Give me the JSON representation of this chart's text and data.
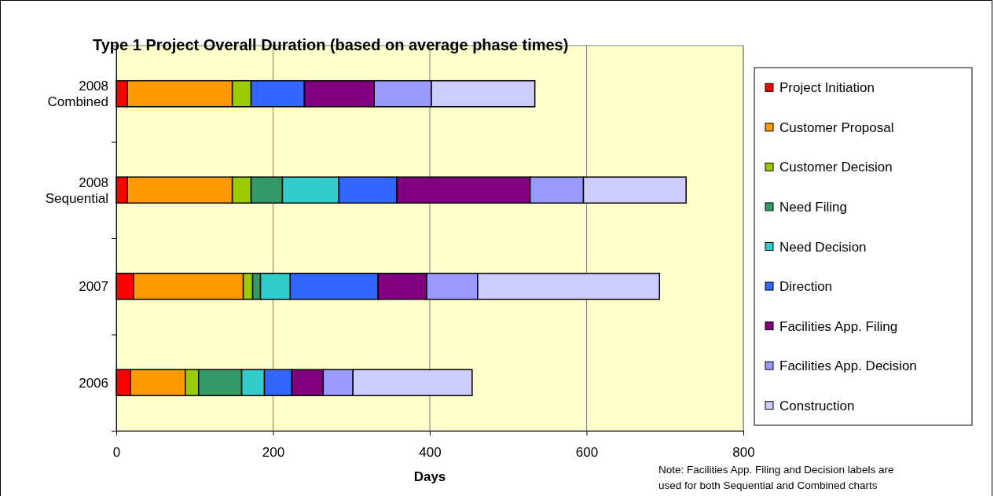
{
  "chart_data": {
    "type": "bar",
    "orientation": "horizontal",
    "stacked": true,
    "title": "Type 1 Project Overall Duration (based on average phase times)",
    "xlabel": "Days",
    "categories": [
      "2008 Combined",
      "2008 Sequential",
      "2007",
      "2006"
    ],
    "series": [
      {
        "name": "Project Initiation",
        "color": "#ff0000",
        "values": [
          14,
          14,
          22,
          18
        ]
      },
      {
        "name": "Customer Proposal",
        "color": "#ff9900",
        "values": [
          134,
          134,
          140,
          70
        ]
      },
      {
        "name": "Customer Decision",
        "color": "#99cc00",
        "values": [
          24,
          24,
          12,
          17
        ]
      },
      {
        "name": "Need Filing",
        "color": "#339966",
        "values": [
          null,
          40,
          10,
          55
        ]
      },
      {
        "name": "Need Decision",
        "color": "#33cccc",
        "values": [
          null,
          72,
          38,
          29
        ]
      },
      {
        "name": "Direction",
        "color": "#3366ff",
        "values": [
          68,
          74,
          112,
          35
        ]
      },
      {
        "name": "Facilities App. Filing",
        "color": "#800080",
        "values": [
          89,
          170,
          62,
          40
        ]
      },
      {
        "name": "Facilities App. Decision",
        "color": "#9999ff",
        "values": [
          73,
          68,
          65,
          38
        ]
      },
      {
        "name": "Construction",
        "color": "#ccccff",
        "values": [
          132,
          131,
          232,
          152
        ]
      }
    ],
    "xlim": [
      0,
      800
    ],
    "xticks": [
      0,
      200,
      400,
      600,
      800
    ],
    "grid": "x",
    "legend": "right",
    "annotations": [
      "Note: Facilities App. Filing and Decision labels are used for both Sequential and Combined charts"
    ]
  }
}
